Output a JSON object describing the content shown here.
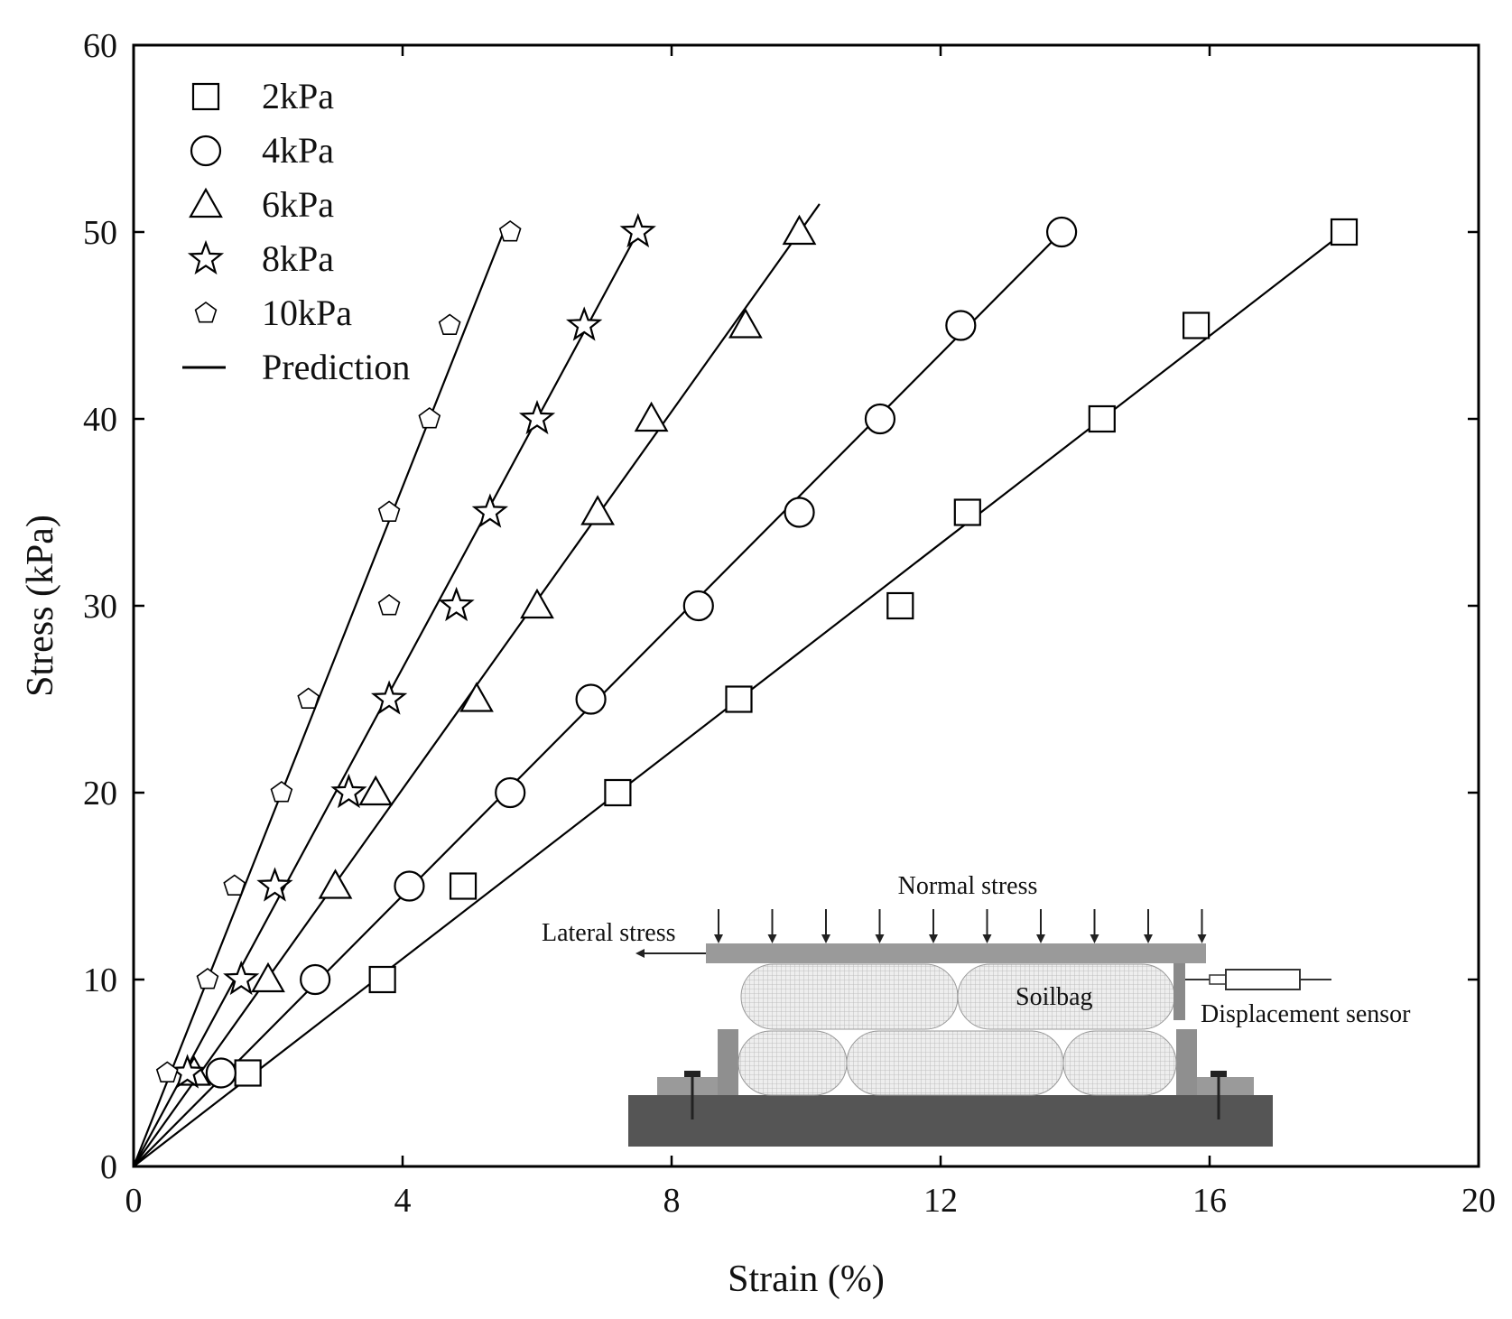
{
  "chart_data": {
    "type": "scatter",
    "title": "",
    "xlabel": "Strain (%)",
    "ylabel": "Stress (kPa)",
    "xlim": [
      0,
      20
    ],
    "ylim": [
      0,
      60
    ],
    "xticks": [
      0,
      4,
      8,
      12,
      16,
      20
    ],
    "yticks": [
      0,
      10,
      20,
      30,
      40,
      50,
      60
    ],
    "grid": false,
    "legend_position": "top-left",
    "series": [
      {
        "name": "2kPa",
        "marker": "square",
        "x": [
          1.7,
          3.7,
          4.9,
          7.2,
          9.0,
          11.4,
          12.4,
          14.4,
          15.8,
          18.0
        ],
        "y": [
          5,
          10,
          15,
          20,
          25,
          30,
          35,
          40,
          45,
          50
        ]
      },
      {
        "name": "4kPa",
        "marker": "circle",
        "x": [
          1.3,
          2.7,
          4.1,
          5.6,
          6.8,
          8.4,
          9.9,
          11.1,
          12.3,
          13.8
        ],
        "y": [
          5,
          10,
          15,
          20,
          25,
          30,
          35,
          40,
          45,
          50
        ]
      },
      {
        "name": "6kPa",
        "marker": "triangle",
        "x": [
          0.9,
          2.0,
          3.0,
          3.6,
          5.1,
          6.0,
          6.9,
          7.7,
          9.1,
          9.9
        ],
        "y": [
          5,
          10,
          15,
          20,
          25,
          30,
          35,
          40,
          45,
          50
        ]
      },
      {
        "name": "8kPa",
        "marker": "star",
        "x": [
          0.8,
          1.6,
          2.1,
          3.2,
          3.8,
          4.8,
          5.3,
          6.0,
          6.7,
          7.5
        ],
        "y": [
          5,
          10,
          15,
          20,
          25,
          30,
          35,
          40,
          45,
          50
        ]
      },
      {
        "name": "10kPa",
        "marker": "pentagon",
        "x": [
          0.5,
          1.1,
          1.5,
          2.2,
          2.6,
          3.8,
          3.8,
          4.4,
          4.7,
          5.6
        ],
        "y": [
          5,
          10,
          15,
          20,
          25,
          30,
          35,
          40,
          45,
          50
        ]
      }
    ],
    "prediction_lines": [
      {
        "name": "Prediction",
        "x": [
          0,
          18.0
        ],
        "y": [
          0,
          50
        ]
      },
      {
        "x": [
          0,
          13.8
        ],
        "y": [
          0,
          50
        ]
      },
      {
        "x": [
          0,
          10.2
        ],
        "y": [
          0,
          51.5
        ]
      },
      {
        "x": [
          0,
          7.5
        ],
        "y": [
          0,
          50
        ]
      },
      {
        "x": [
          0,
          5.5
        ],
        "y": [
          0,
          50
        ]
      }
    ],
    "legend": [
      "2kPa",
      "4kPa",
      "6kPa",
      "8kPa",
      "10kPa",
      "Prediction"
    ]
  },
  "inset": {
    "normal_stress_label": "Normal stress",
    "lateral_stress_label": "Lateral stress",
    "soilbag_label": "Soilbag",
    "sensor_label": "Displacement sensor"
  }
}
